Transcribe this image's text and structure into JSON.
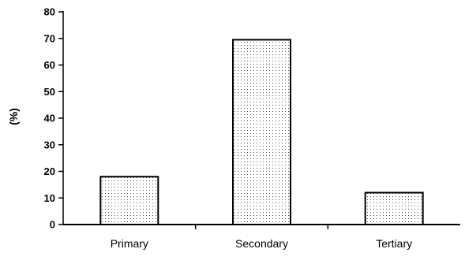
{
  "chart_data": {
    "type": "bar",
    "categories": [
      "Primary",
      "Secondary",
      "Tertiary"
    ],
    "values": [
      18,
      69.5,
      12
    ],
    "title": "",
    "xlabel": "",
    "ylabel": "(%)",
    "ylim": [
      0,
      80
    ],
    "yticks": [
      0,
      10,
      20,
      30,
      40,
      50,
      60,
      70,
      80
    ],
    "ytick_labels": [
      "0",
      "10",
      "20",
      "30",
      "40",
      "50",
      "60",
      "70",
      "80"
    ],
    "grid": false,
    "legend": "none",
    "bar_fill": "#ffffff",
    "bar_pattern": "dotted",
    "bar_stroke": "#000000",
    "axis_color": "#000000"
  }
}
